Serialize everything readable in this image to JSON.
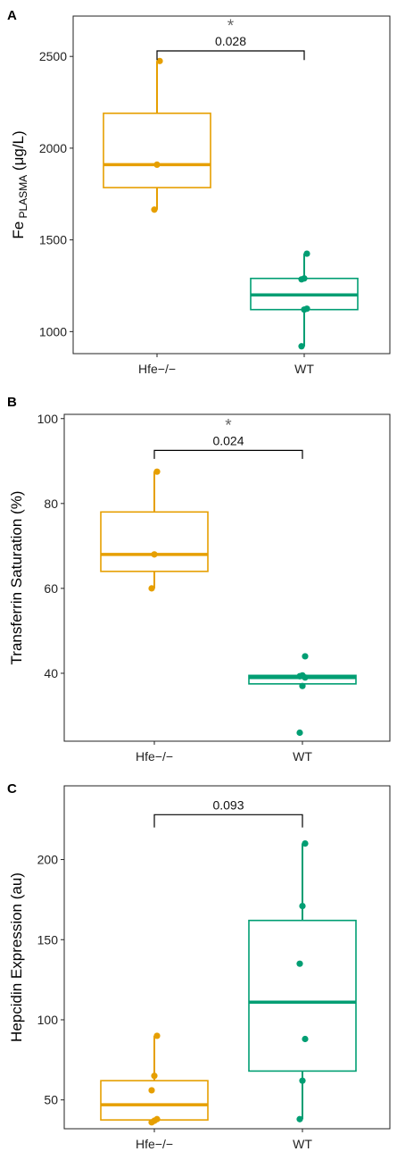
{
  "colors": {
    "hfe": "#E69F00",
    "wt": "#009E73",
    "axis": "#222222",
    "bracket": "#000000",
    "star": "#666666"
  },
  "chart_data": [
    {
      "panel_label": "A",
      "type": "box",
      "ylabel_main": "Fe",
      "ylabel_sub": "PLASMA",
      "ylabel_unit": " (μg/L)",
      "ylim": [
        880,
        2720
      ],
      "yticks": [
        1000,
        1500,
        2000,
        2500
      ],
      "categories": [
        "Hfe−/−",
        "WT"
      ],
      "boxes": [
        {
          "name": "Hfe−/−",
          "color_key": "hfe",
          "whisker_low": 1665,
          "q1": 1785,
          "median": 1910,
          "q3": 2190,
          "whisker_high": 2475,
          "points": [
            1665,
            1910,
            2475
          ]
        },
        {
          "name": "WT",
          "color_key": "wt",
          "whisker_low": 920,
          "q1": 1120,
          "median": 1200,
          "q3": 1290,
          "whisker_high": 1425,
          "points": [
            920,
            1120,
            1125,
            1285,
            1290,
            1425
          ]
        }
      ],
      "bracket": {
        "y": 2530,
        "tick": 50,
        "p_label": "0.028",
        "star": "*"
      }
    },
    {
      "panel_label": "B",
      "type": "box",
      "ylabel_main": "Transferrin Saturation (%)",
      "ylabel_sub": "",
      "ylabel_unit": "",
      "ylim": [
        24,
        101
      ],
      "yticks": [
        40,
        60,
        80,
        100
      ],
      "categories": [
        "Hfe−/−",
        "WT"
      ],
      "boxes": [
        {
          "name": "Hfe−/−",
          "color_key": "hfe",
          "whisker_low": 60,
          "q1": 64,
          "median": 68,
          "q3": 78,
          "whisker_high": 87.5,
          "points": [
            60,
            68,
            87.5
          ]
        },
        {
          "name": "WT",
          "color_key": "wt",
          "whisker_low": 37.5,
          "q1": 37.5,
          "median": 39,
          "q3": 39.5,
          "whisker_high": 39.5,
          "points": [
            26,
            37,
            39,
            39.3,
            39.5,
            44
          ]
        }
      ],
      "bracket": {
        "y": 92.5,
        "tick": 2,
        "p_label": "0.024",
        "star": "*"
      }
    },
    {
      "panel_label": "C",
      "type": "box",
      "ylabel_main": "Hepcidin Expression (au)",
      "ylabel_sub": "",
      "ylabel_unit": "",
      "ylim": [
        32,
        246
      ],
      "yticks": [
        50,
        100,
        150,
        200
      ],
      "categories": [
        "Hfe−/−",
        "WT"
      ],
      "boxes": [
        {
          "name": "Hfe−/−",
          "color_key": "hfe",
          "whisker_low": 37,
          "q1": 37.5,
          "median": 47,
          "q3": 62,
          "whisker_high": 90,
          "points": [
            36,
            37,
            38,
            56,
            65,
            90
          ]
        },
        {
          "name": "WT",
          "color_key": "wt",
          "whisker_low": 38,
          "q1": 68,
          "median": 111,
          "q3": 162,
          "whisker_high": 210,
          "points": [
            38,
            62,
            88,
            135,
            171,
            210
          ]
        }
      ],
      "bracket": {
        "y": 228,
        "tick": 8,
        "p_label": "0.093",
        "star": ""
      }
    }
  ]
}
